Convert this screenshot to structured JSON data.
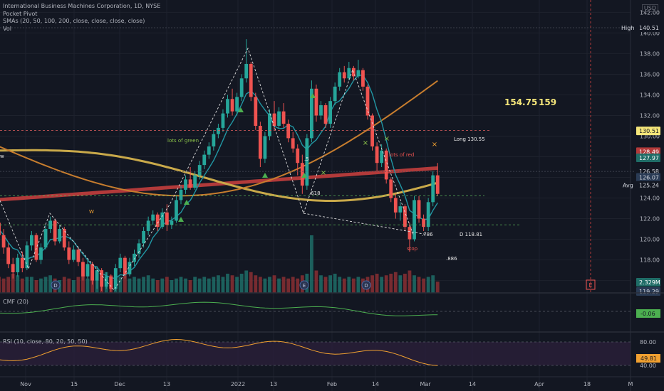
{
  "legend": {
    "title": "International Business Machines Corporation, 1D, NYSE",
    "line2": "Pocket Pivot",
    "line3": "SMAs (20, 50, 100, 200, close, close, close, close)",
    "line4": "Vol"
  },
  "currency": "USD",
  "colors": {
    "background": "#131722",
    "up": "#26a69a",
    "down": "#ef5350",
    "sma20": "#2196a3",
    "sma50": "#c77d2e",
    "sma100": "#c9a94a",
    "sma200": "#b23a3a",
    "annotation": "#e6e6e6",
    "note": "#f5e67a"
  },
  "chart_data": {
    "type": "candlestick",
    "price_axis": {
      "ticks": [
        "142.00",
        "140.00",
        "138.00",
        "136.00",
        "134.00",
        "132.00",
        "130.00",
        "128.00",
        "126.00",
        "124.00",
        "122.00",
        "120.00",
        "118.00",
        "116.00"
      ],
      "range": [
        114.8,
        143.2
      ]
    },
    "time_axis": {
      "labels": [
        "Nov",
        "15",
        "Dec",
        "13",
        "2022",
        "13",
        "Feb",
        "14",
        "Mar",
        "14",
        "Apr",
        "18",
        "M"
      ]
    },
    "candles": [
      [
        124,
        124.4,
        121.2,
        121.6
      ],
      [
        121.6,
        122,
        119.8,
        120.4
      ],
      [
        120.4,
        121,
        118.6,
        119.2
      ],
      [
        119.2,
        119.6,
        117.2,
        117.6
      ],
      [
        117.6,
        118.2,
        116.2,
        116.8
      ],
      [
        116.8,
        118.6,
        116.4,
        118.2
      ],
      [
        118.2,
        118.8,
        116.8,
        117.2
      ],
      [
        117.2,
        119.8,
        117,
        119.4
      ],
      [
        119.4,
        120.8,
        118.9,
        120.4
      ],
      [
        120.4,
        120.6,
        117.8,
        118
      ],
      [
        118,
        119.6,
        117.6,
        119.2
      ],
      [
        119.2,
        121.4,
        119,
        121
      ],
      [
        121,
        122.2,
        120.6,
        121.8
      ],
      [
        121.8,
        122,
        119.4,
        119.8
      ],
      [
        119.8,
        121.4,
        119.6,
        121
      ],
      [
        121,
        121.2,
        118.9,
        119.2
      ],
      [
        119.2,
        119.8,
        117.6,
        118
      ],
      [
        118,
        119.4,
        117.8,
        119
      ],
      [
        119,
        119.2,
        117.4,
        117.8
      ],
      [
        117.8,
        118.2,
        116,
        116.4
      ],
      [
        116.4,
        118,
        116.2,
        117.6
      ],
      [
        117.6,
        117.8,
        115.6,
        116
      ],
      [
        116,
        117.4,
        115.2,
        117
      ],
      [
        117,
        117.2,
        115,
        115.4
      ],
      [
        115.4,
        116.8,
        115.2,
        116.4
      ],
      [
        116.4,
        116.6,
        114.9,
        115.2
      ],
      [
        115.2,
        117.6,
        115,
        117.2
      ],
      [
        117.2,
        118.6,
        116.8,
        118.2
      ],
      [
        118.2,
        118.4,
        116.2,
        116.6
      ],
      [
        116.6,
        118.2,
        116.4,
        117.8
      ],
      [
        117.8,
        119,
        117.4,
        118.6
      ],
      [
        118.6,
        120,
        118.2,
        119.6
      ],
      [
        119.6,
        121.2,
        119.2,
        120.8
      ],
      [
        120.8,
        122.2,
        120.4,
        121.8
      ],
      [
        121.8,
        122.8,
        121.4,
        122.4
      ],
      [
        122.4,
        122.6,
        120.8,
        121.2
      ],
      [
        121.2,
        123,
        121,
        122.6
      ],
      [
        122.6,
        123.4,
        120.8,
        121.4
      ],
      [
        121.4,
        122.2,
        121,
        121.8
      ],
      [
        121.8,
        124.2,
        121.6,
        123.8
      ],
      [
        123.8,
        125.2,
        123.4,
        124.8
      ],
      [
        124.8,
        126.2,
        124.4,
        125.8
      ],
      [
        125.8,
        127,
        124.8,
        125
      ],
      [
        125,
        126.6,
        124.8,
        126.2
      ],
      [
        126.2,
        127.6,
        125.8,
        127.2
      ],
      [
        127.2,
        128.6,
        126.8,
        128.2
      ],
      [
        128.2,
        129.4,
        127.8,
        129
      ],
      [
        129,
        130.6,
        128.6,
        130.2
      ],
      [
        130.2,
        131.2,
        129.8,
        130.8
      ],
      [
        130.8,
        132.6,
        130.4,
        132.2
      ],
      [
        132.2,
        134,
        131.8,
        133.6
      ],
      [
        133.6,
        134.6,
        132,
        132.4
      ],
      [
        132.4,
        134.2,
        132,
        133.8
      ],
      [
        133.8,
        136,
        133.4,
        135.6
      ],
      [
        135.6,
        139.4,
        135.2,
        137
      ],
      [
        137,
        137.2,
        133.4,
        133.8
      ],
      [
        133.8,
        134.2,
        130.6,
        131
      ],
      [
        131,
        131.4,
        127,
        127.8
      ],
      [
        127.8,
        130.4,
        127.4,
        130
      ],
      [
        130,
        132.6,
        129.6,
        132.2
      ],
      [
        132.2,
        133.4,
        130.6,
        131
      ],
      [
        131,
        132.8,
        130.8,
        132.4
      ],
      [
        132.4,
        133.2,
        130.8,
        131.2
      ],
      [
        131.2,
        131.6,
        129.4,
        129.8
      ],
      [
        129.8,
        130.4,
        128.4,
        128.8
      ],
      [
        128.8,
        129.2,
        126.2,
        127.4
      ],
      [
        127.4,
        128.2,
        124.4,
        125.2
      ],
      [
        125.2,
        130.2,
        124.8,
        129.8
      ],
      [
        129.8,
        135.4,
        129.4,
        134.6
      ],
      [
        134.6,
        135,
        131.4,
        132
      ],
      [
        132,
        133.4,
        131.6,
        133
      ],
      [
        133,
        133.2,
        130.8,
        131.2
      ],
      [
        131.2,
        133.8,
        130.8,
        133.4
      ],
      [
        133.4,
        135.2,
        133,
        134.8
      ],
      [
        134.8,
        136.6,
        134.4,
        136.2
      ],
      [
        136.2,
        136.8,
        135.2,
        135.6
      ],
      [
        135.6,
        137.2,
        135.4,
        136.6
      ],
      [
        136.6,
        136.8,
        135.4,
        135.8
      ],
      [
        135.8,
        137.4,
        135.6,
        136.4
      ],
      [
        136.4,
        136.6,
        134.4,
        134.8
      ],
      [
        134.8,
        135,
        131.6,
        132
      ],
      [
        132,
        132.2,
        128.6,
        129
      ],
      [
        129,
        129.4,
        126.6,
        127.4
      ],
      [
        127.4,
        129.2,
        127,
        128.6
      ],
      [
        128.6,
        128.8,
        125.4,
        125.8
      ],
      [
        125.8,
        126,
        123.6,
        124
      ],
      [
        124,
        124.4,
        122,
        122.6
      ],
      [
        122.6,
        123.6,
        121.8,
        123.2
      ],
      [
        123.2,
        123.4,
        120.8,
        121.2
      ],
      [
        121.2,
        121.6,
        118.8,
        120
      ],
      [
        120,
        124.2,
        119.8,
        123.8
      ],
      [
        123.8,
        124.2,
        121.6,
        122
      ],
      [
        122,
        122.4,
        120.8,
        121.2
      ],
      [
        121.2,
        124,
        120.8,
        123.6
      ],
      [
        123.6,
        126.6,
        123.2,
        126.2
      ],
      [
        126.2,
        127.4,
        124.2,
        124.4
      ]
    ],
    "volume_up": [
      1,
      0,
      0,
      0,
      0,
      1,
      0,
      1,
      1,
      0,
      1,
      1,
      1,
      0,
      1,
      0,
      0,
      1,
      0,
      0,
      1,
      0,
      1,
      0,
      1,
      0,
      1,
      1,
      0,
      1,
      1,
      1,
      1,
      1,
      1,
      0,
      1,
      0,
      1,
      1,
      1,
      1,
      0,
      1,
      1,
      1,
      1,
      1,
      1,
      1,
      1,
      0,
      1,
      1,
      1,
      0,
      0,
      0,
      1,
      1,
      0,
      1,
      0,
      0,
      0,
      0,
      0,
      1,
      1,
      0,
      1,
      0,
      1,
      1,
      1,
      0,
      1,
      0,
      1,
      0,
      0,
      0,
      0,
      1,
      0,
      0,
      0,
      1,
      0,
      0,
      1,
      0,
      0,
      1,
      1,
      0
    ],
    "volumes": [
      0.55,
      0.5,
      0.45,
      0.5,
      0.6,
      0.55,
      0.45,
      0.5,
      0.5,
      0.4,
      0.45,
      0.5,
      0.55,
      0.45,
      0.4,
      0.5,
      0.45,
      0.4,
      0.5,
      0.55,
      0.45,
      0.5,
      0.6,
      0.5,
      0.65,
      0.55,
      0.45,
      0.5,
      0.55,
      0.45,
      0.5,
      0.45,
      0.5,
      0.55,
      0.45,
      0.4,
      0.45,
      0.5,
      0.4,
      0.45,
      0.5,
      0.45,
      0.4,
      0.5,
      0.45,
      0.5,
      0.45,
      0.5,
      0.55,
      0.5,
      0.6,
      0.55,
      0.5,
      0.6,
      0.7,
      0.65,
      0.55,
      0.5,
      0.45,
      0.5,
      0.55,
      0.45,
      0.5,
      0.45,
      0.5,
      0.45,
      0.55,
      0.6,
      1.8,
      0.7,
      0.55,
      0.5,
      0.55,
      0.6,
      0.5,
      0.45,
      0.5,
      0.45,
      0.5,
      0.45,
      0.5,
      0.55,
      0.6,
      0.5,
      0.55,
      0.6,
      0.65,
      0.55,
      0.6,
      0.7,
      0.55,
      0.5,
      0.45,
      0.5,
      0.55,
      0.35
    ]
  },
  "price_tags": {
    "high_label": "High",
    "high_value": "140.51",
    "long_value": "130.51",
    "sma_tag1": "128.49",
    "sma_tag1b": "127.97",
    "sma_tag2": "126.58",
    "sma_tag2b": "126.07",
    "avg_label": "Avg",
    "avg_value": "125.24",
    "vol_value": "2.329M",
    "vol_value_b": "119.29"
  },
  "annotations": {
    "lots_of_green": "lots of green",
    "lots_of_red": "lots of red",
    "long": "Long 130.55",
    "fib_618": ".618",
    "fib_5": ".5",
    "fib_786": ".786",
    "fib_886": ".886",
    "d_target": "D 118.81",
    "stop": "stop",
    "w_left": "W",
    "w_edge": "w",
    "big_1": "154.75",
    "big_2": "159",
    "event_e": "E",
    "dividend_d": "D",
    "earnings_e": "E"
  },
  "cmf": {
    "label": "CMF (20)",
    "value": "-0.06"
  },
  "rsi": {
    "label": "RSI (10, close, 80, 20, 50, 50)",
    "value": "49.81",
    "upper_label": "80.00",
    "lower_label": "40.00"
  }
}
